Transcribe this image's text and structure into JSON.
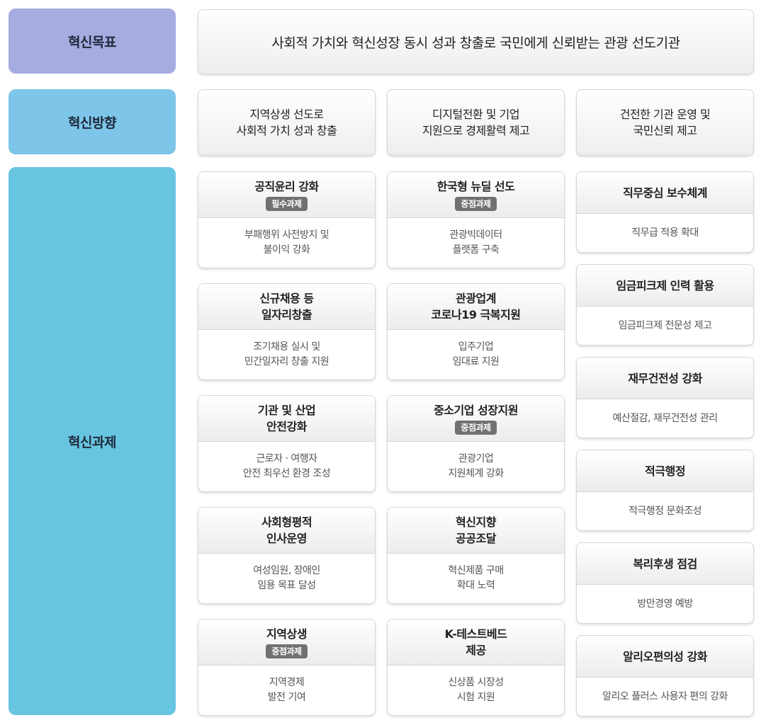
{
  "labels": {
    "goal": "혁신목표",
    "direction": "혁신방향",
    "tasks": "혁신과제"
  },
  "goal_text": "사회적 가치와 혁신성장 동시 성과 창출로 국민에게 신뢰받는 관광 선도기관",
  "directions": [
    "지역상생 선도로\n사회적 가치 성과 창출",
    "디지털전환 및 기업\n지원으로 경제활력 제고",
    "건전한 기관 운영 및\n국민신뢰 제고"
  ],
  "column1": [
    {
      "title": "공직윤리 강화",
      "badge": "필수과제",
      "desc": "부패행위 사전방지 및\n불이익 강화"
    },
    {
      "title": "신규채용 등\n일자리창출",
      "badge": "",
      "desc": "조기채용 실시 및\n민간일자리 창출 지원"
    },
    {
      "title": "기관 및 산업\n안전강화",
      "badge": "",
      "desc": "근로자 · 여행자\n안전 최우선 환경 조성"
    },
    {
      "title": "사회형평적\n인사운영",
      "badge": "",
      "desc": "여성임원, 장애인\n임용 목표 달성"
    },
    {
      "title": "지역상생",
      "badge": "중점과제",
      "desc": "지역경제\n발전 기여"
    }
  ],
  "column2": [
    {
      "title": "한국형 뉴딜 선도",
      "badge": "중점과제",
      "desc": "관광빅데이터\n플랫폼 구축"
    },
    {
      "title": "관광업계\n코로나19 극복지원",
      "badge": "",
      "desc": "입주기업\n임대료 지원"
    },
    {
      "title": "중소기업 성장지원",
      "badge": "중점과제",
      "desc": "관광기업\n지원체계 강화"
    },
    {
      "title": "혁신지향\n공공조달",
      "badge": "",
      "desc": "혁신제품 구매\n확대 노력"
    },
    {
      "title": "K-테스트베드\n제공",
      "badge": "",
      "desc": "신상품 시장성\n시험 지원"
    }
  ],
  "column3": [
    {
      "title": "직무중심 보수체계",
      "desc": "직무급 적용 확대"
    },
    {
      "title": "임금피크제 인력 활용",
      "desc": "임금피크제 전문성 제고"
    },
    {
      "title": "재무건전성 강화",
      "desc": "예산절감, 재무건전성 관리"
    },
    {
      "title": "적극행정",
      "desc": "적극행정 문화조성"
    },
    {
      "title": "복리후생 점검",
      "desc": "방만경영 예방"
    },
    {
      "title": "알리오편의성 강화",
      "desc": "알리오 플러스 사용자 편의 강화"
    }
  ]
}
